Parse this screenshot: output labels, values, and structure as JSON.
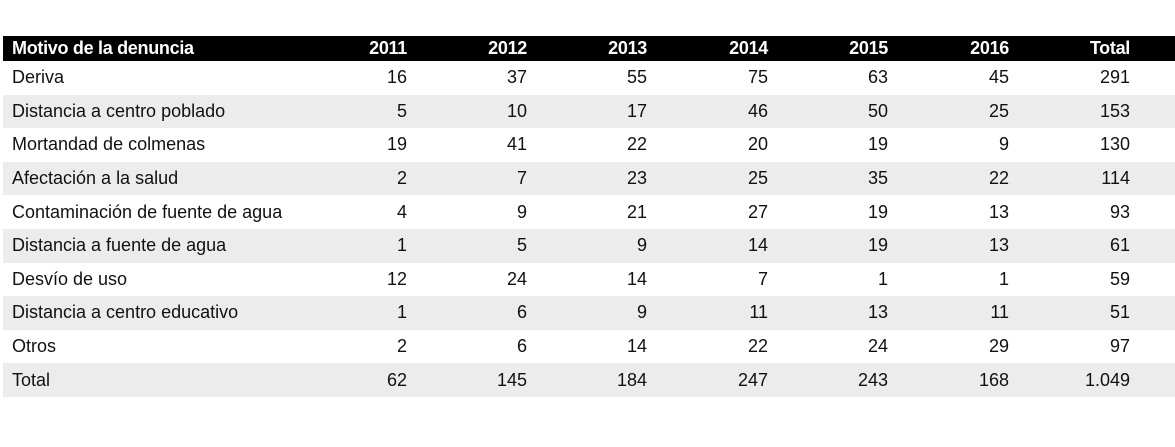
{
  "table": {
    "headers": [
      "Motivo de la denuncia",
      "2011",
      "2012",
      "2013",
      "2014",
      "2015",
      "2016",
      "Total"
    ],
    "rows": [
      [
        "Deriva",
        "16",
        "37",
        "55",
        "75",
        "63",
        "45",
        "291"
      ],
      [
        "Distancia a centro poblado",
        "5",
        "10",
        "17",
        "46",
        "50",
        "25",
        "153"
      ],
      [
        "Mortandad de colmenas",
        "19",
        "41",
        "22",
        "20",
        "19",
        "9",
        "130"
      ],
      [
        "Afectación a la salud",
        "2",
        "7",
        "23",
        "25",
        "35",
        "22",
        "114"
      ],
      [
        "Contaminación de fuente de agua",
        "4",
        "9",
        "21",
        "27",
        "19",
        "13",
        "93"
      ],
      [
        "Distancia a fuente de agua",
        "1",
        "5",
        "9",
        "14",
        "19",
        "13",
        "61"
      ],
      [
        "Desvío de uso",
        "12",
        "24",
        "14",
        "7",
        "1",
        "1",
        "59"
      ],
      [
        "Distancia a centro educativo",
        "1",
        "6",
        "9",
        "11",
        "13",
        "11",
        "51"
      ],
      [
        "Otros",
        "2",
        "6",
        "14",
        "22",
        "24",
        "29",
        "97"
      ],
      [
        "Total",
        "62",
        "145",
        "184",
        "247",
        "243",
        "168",
        "1.049"
      ]
    ]
  }
}
